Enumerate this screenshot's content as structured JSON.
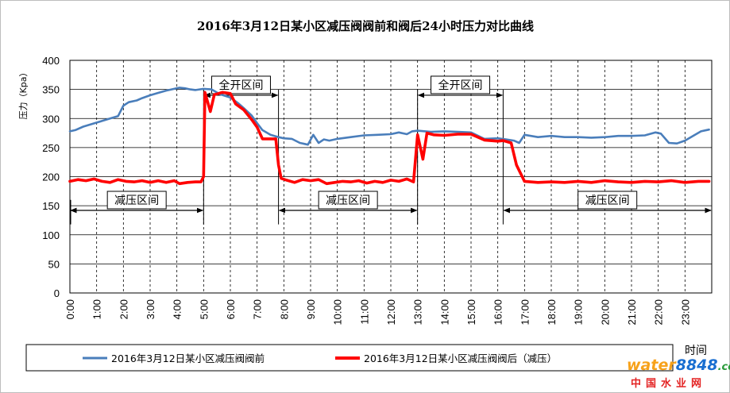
{
  "chart_data": {
    "type": "line",
    "title": "2016年3月12日某小区减压阀阀前和阀后24小时压力对比曲线",
    "ylabel": "压力（Kpa）",
    "xlabel": "时间",
    "ylim": [
      0,
      400
    ],
    "yticks": [
      "0",
      "50",
      "100",
      "150",
      "200",
      "250",
      "300",
      "350",
      "400"
    ],
    "xlim": [
      0,
      24
    ],
    "xticks": [
      "0:00",
      "1:00",
      "2:00",
      "3:00",
      "4:00",
      "5:00",
      "6:00",
      "7:00",
      "8:00",
      "9:00",
      "10:00",
      "11:00",
      "12:00",
      "13:00",
      "14:00",
      "15:00",
      "16:00",
      "17:00",
      "18:00",
      "19:00",
      "20:00",
      "21:00",
      "22:00",
      "23:00"
    ],
    "grid": "horizontal solid, vertical dashed",
    "legend_position": "bottom",
    "series": [
      {
        "name": "2016年3月12日某小区减压阀阀前",
        "color": "#4a7ebb",
        "x": [
          0,
          0.2,
          0.5,
          1.0,
          1.5,
          1.8,
          2.0,
          2.2,
          2.5,
          2.7,
          3.0,
          3.3,
          3.6,
          3.9,
          4.1,
          4.3,
          4.5,
          4.7,
          5.0,
          5.3,
          5.6,
          6.0,
          6.3,
          6.5,
          6.8,
          7.0,
          7.2,
          7.5,
          7.8,
          8.0,
          8.3,
          8.6,
          8.9,
          9.1,
          9.3,
          9.5,
          9.7,
          10.0,
          10.5,
          11.0,
          11.5,
          12.0,
          12.3,
          12.6,
          12.8,
          13.0,
          13.5,
          14.0,
          14.5,
          15.0,
          15.5,
          16.0,
          16.3,
          16.6,
          16.8,
          17.0,
          17.5,
          18.0,
          18.5,
          19.0,
          19.5,
          20.0,
          20.5,
          21.0,
          21.5,
          21.9,
          22.1,
          22.4,
          22.7,
          23.0,
          23.3,
          23.6,
          23.9
        ],
        "values": [
          278,
          280,
          286,
          293,
          300,
          304,
          322,
          328,
          331,
          335,
          340,
          344,
          348,
          351,
          353,
          352,
          350,
          349,
          351,
          350,
          342,
          336,
          326,
          318,
          305,
          292,
          280,
          272,
          268,
          266,
          265,
          258,
          255,
          272,
          258,
          264,
          262,
          265,
          268,
          271,
          272,
          273,
          276,
          273,
          278,
          279,
          277,
          278,
          277,
          276,
          265,
          266,
          264,
          262,
          258,
          272,
          268,
          270,
          268,
          268,
          267,
          268,
          270,
          270,
          271,
          276,
          274,
          258,
          257,
          262,
          270,
          278,
          281
        ]
      },
      {
        "name": "2016年3月12日某小区减压阀阀后（减压）",
        "color": "#ff0000",
        "x": [
          0,
          0.3,
          0.6,
          0.9,
          1.2,
          1.5,
          1.8,
          2.1,
          2.4,
          2.7,
          3.0,
          3.3,
          3.6,
          3.9,
          4.1,
          4.4,
          4.7,
          4.9,
          5.0,
          5.05,
          5.25,
          5.4,
          5.55,
          5.7,
          6.0,
          6.2,
          6.5,
          6.8,
          7.0,
          7.2,
          7.5,
          7.7,
          7.8,
          7.9,
          8.1,
          8.4,
          8.7,
          9.0,
          9.3,
          9.6,
          9.9,
          10.2,
          10.5,
          10.8,
          11.1,
          11.4,
          11.7,
          12.0,
          12.3,
          12.6,
          12.85,
          13.0,
          13.2,
          13.35,
          13.6,
          14.0,
          14.5,
          15.0,
          15.5,
          16.0,
          16.2,
          16.5,
          16.7,
          17.0,
          17.5,
          18.0,
          18.5,
          19.0,
          19.5,
          20.0,
          20.5,
          21.0,
          21.5,
          22.0,
          22.5,
          23.0,
          23.5,
          23.9
        ],
        "values": [
          192,
          195,
          193,
          196,
          192,
          190,
          195,
          192,
          191,
          193,
          190,
          193,
          190,
          193,
          188,
          190,
          191,
          191,
          200,
          345,
          312,
          341,
          343,
          345,
          343,
          325,
          315,
          298,
          285,
          265,
          265,
          265,
          220,
          197,
          194,
          190,
          195,
          193,
          195,
          188,
          190,
          192,
          191,
          193,
          189,
          192,
          190,
          194,
          192,
          196,
          191,
          272,
          230,
          275,
          272,
          271,
          273,
          273,
          263,
          261,
          262,
          258,
          220,
          192,
          190,
          191,
          190,
          192,
          190,
          193,
          191,
          190,
          192,
          191,
          193,
          190,
          192,
          192
        ]
      }
    ],
    "annotations": [
      {
        "text": "减压区间",
        "from": 0,
        "to": 5.0,
        "at": 142
      },
      {
        "text": "全开区间",
        "from": 5.0,
        "to": 7.8,
        "at": 340
      },
      {
        "text": "减压区间",
        "from": 7.8,
        "to": 13.0,
        "at": 142
      },
      {
        "text": "全开区间",
        "from": 13.0,
        "to": 16.2,
        "at": 340
      },
      {
        "text": "减压区间",
        "from": 16.2,
        "to": 24.0,
        "at": 142
      }
    ]
  },
  "watermark": {
    "brand_part1": "water",
    "brand_part2": "8848",
    "brand_suffix": ".com",
    "subtitle": "中国水业网"
  }
}
